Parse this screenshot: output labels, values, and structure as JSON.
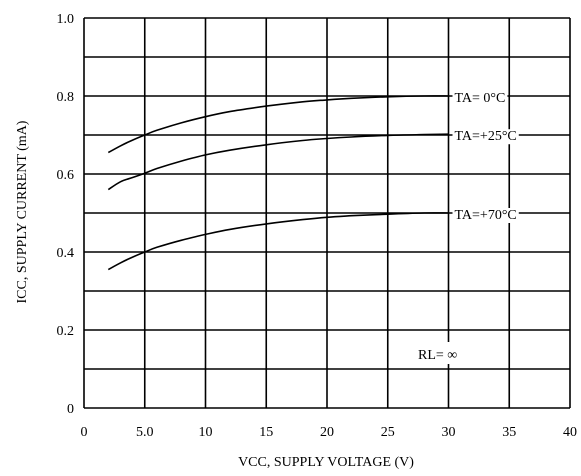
{
  "chart_data": {
    "type": "line",
    "title": "",
    "xlabel": "VCC, SUPPLY VOLTAGE (V)",
    "ylabel": "ICC, SUPPLY CURRENT (mA)",
    "xlim": [
      0,
      40
    ],
    "ylim": [
      0,
      1.0
    ],
    "x_ticks": [
      "0",
      "5.0",
      "10",
      "15",
      "20",
      "25",
      "30",
      "35",
      "40"
    ],
    "y_ticks": [
      "0",
      "0.2",
      "0.4",
      "0.6",
      "0.8",
      "1.0"
    ],
    "grid": true,
    "annotation": "RL= ∞",
    "series": [
      {
        "name": "TA= 0°C",
        "x": [
          2,
          3,
          4,
          5,
          6,
          8,
          10,
          12,
          15,
          18,
          20,
          22,
          25,
          28,
          30
        ],
        "y": [
          0.655,
          0.672,
          0.687,
          0.7,
          0.712,
          0.731,
          0.747,
          0.76,
          0.774,
          0.785,
          0.79,
          0.794,
          0.798,
          0.8,
          0.8
        ]
      },
      {
        "name": "TA=+25°C",
        "x": [
          2,
          3,
          4,
          5,
          6,
          8,
          10,
          12,
          15,
          18,
          20,
          22,
          25,
          28,
          30
        ],
        "y": [
          0.56,
          0.58,
          0.591,
          0.602,
          0.614,
          0.633,
          0.649,
          0.661,
          0.675,
          0.686,
          0.691,
          0.695,
          0.699,
          0.701,
          0.702
        ]
      },
      {
        "name": "TA=+70°C",
        "x": [
          2,
          3,
          4,
          5,
          6,
          8,
          10,
          12,
          15,
          18,
          20,
          22,
          25,
          28,
          30
        ],
        "y": [
          0.355,
          0.372,
          0.387,
          0.4,
          0.412,
          0.43,
          0.445,
          0.458,
          0.472,
          0.483,
          0.489,
          0.493,
          0.497,
          0.5,
          0.5
        ]
      }
    ]
  }
}
